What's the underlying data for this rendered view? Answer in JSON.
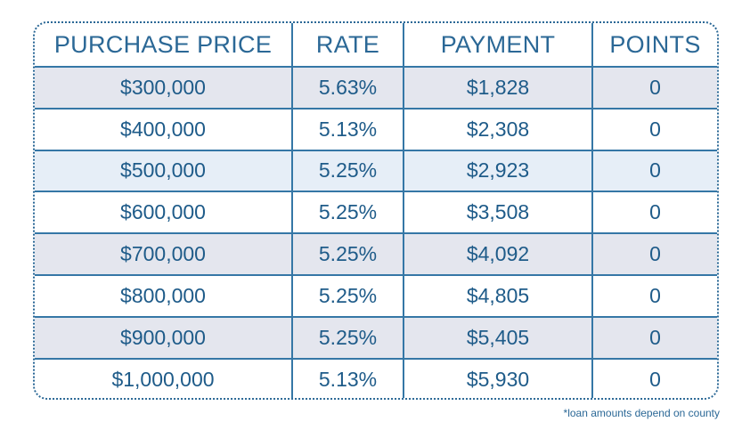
{
  "table": {
    "headers": [
      "PURCHASE PRICE",
      "RATE",
      "PAYMENT",
      "POINTS"
    ],
    "rows": [
      {
        "price": "$300,000",
        "rate": "5.63%",
        "payment": "$1,828",
        "points": "0",
        "shade": "gray"
      },
      {
        "price": "$400,000",
        "rate": "5.13%",
        "payment": "$2,308",
        "points": "0",
        "shade": "white"
      },
      {
        "price": "$500,000",
        "rate": "5.25%",
        "payment": "$2,923",
        "points": "0",
        "shade": "blue"
      },
      {
        "price": "$600,000",
        "rate": "5.25%",
        "payment": "$3,508",
        "points": "0",
        "shade": "white"
      },
      {
        "price": "$700,000",
        "rate": "5.25%",
        "payment": "$4,092",
        "points": "0",
        "shade": "gray"
      },
      {
        "price": "$800,000",
        "rate": "5.25%",
        "payment": "$4,805",
        "points": "0",
        "shade": "white"
      },
      {
        "price": "$900,000",
        "rate": "5.25%",
        "payment": "$5,405",
        "points": "0",
        "shade": "gray"
      },
      {
        "price": "$1,000,000",
        "rate": "5.13%",
        "payment": "$5,930",
        "points": "0",
        "shade": "white"
      }
    ]
  },
  "footnote": "*loan amounts depend on county",
  "colors": {
    "text": "#1f5f8f",
    "border": "#3577a6",
    "row_gray": "#e4e6ee",
    "row_blue": "#e6eef7"
  }
}
